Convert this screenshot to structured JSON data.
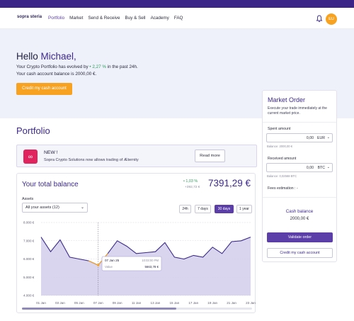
{
  "nav": {
    "logo": "sopra steria",
    "items": [
      "Portfolio",
      "Market",
      "Send & Receive",
      "Buy & Sell",
      "Academy",
      "FAQ"
    ],
    "active": "Portfolio",
    "avatar_initials": "EU",
    "icons": {
      "bell": "bell-icon"
    }
  },
  "hero": {
    "greeting": "Hello",
    "name": "Michael,",
    "evolve_prefix": "Your Crypto Portfolio has evolved by",
    "evolve_pct": "2,27 %",
    "evolve_suffix": "in the past 24h.",
    "balance_text": "Your cash account balance is 2000,00 €.",
    "credit_button": "Credit my cash account"
  },
  "portfolio": {
    "title": "Portfolio",
    "news_title": "NEW !",
    "news_text": "Sopra Crypto Solutions now allows trading of Æternity",
    "read_more": "Read more"
  },
  "balance_card": {
    "title": "Your total balance",
    "change_pct": "1,03 %",
    "change_abs": "+392,72 €",
    "total": "7391,29 €",
    "assets_label": "Assets",
    "assets_value": "All your assets (12)",
    "ranges": [
      "24h",
      "7 days",
      "30 days",
      "1 year"
    ],
    "active_range": "30 days",
    "tooltip_date": "07 Jan 25",
    "tooltip_time": "10:03:00 PM",
    "tooltip_label": "Value",
    "tooltip_value": "5663,78 €"
  },
  "chart_data": {
    "type": "area",
    "x": [
      "01 Jan",
      "02 Jan",
      "03 Jan",
      "04 Jan",
      "05 Jan",
      "06 Jan",
      "07 Jan",
      "08 Jan",
      "09 Jan",
      "10 Jan",
      "11 Jan",
      "12 Jan",
      "13 Jan",
      "14 Jan",
      "15 Jan",
      "16 Jan",
      "17 Jan",
      "18 Jan",
      "19 Jan",
      "20 Jan",
      "21 Jan",
      "22 Jan",
      "23 Jan"
    ],
    "tick_labels": [
      "01 Jan",
      "03 Jan",
      "05 Jan",
      "07 Jan",
      "09 Jan",
      "11 Jan",
      "13 Jan",
      "15 Jan",
      "17 Jan",
      "19 Jan",
      "21 Jan",
      "23 Jan"
    ],
    "values": [
      7200,
      6400,
      7050,
      6100,
      6000,
      5900,
      5664,
      6300,
      7000,
      6700,
      6300,
      6350,
      6400,
      6900,
      6100,
      6000,
      6200,
      6100,
      6650,
      6300,
      6950,
      7000,
      7200
    ],
    "y_ticks": [
      "8.000 €",
      "7.000 €",
      "6.000 €",
      "5.000 €",
      "4.000 €"
    ],
    "ylim": [
      4000,
      8000
    ],
    "grid": true,
    "line_color": "#3b2a86",
    "fill_color": "#d6d0ec"
  },
  "market_order": {
    "title": "Market Order",
    "description": "Execute your trade immediately at the current market price.",
    "spent_label": "Spent amount",
    "spent_value": "0,00",
    "spent_currency": "EUR",
    "spent_balance": "Balance: 2000,00 €",
    "received_label": "Received amount",
    "received_value": "0,00",
    "received_currency": "BTC",
    "received_balance": "Balance: 0,02568 BTC",
    "fees_label": "Fees estimation : -",
    "cash_label": "Cash balance",
    "cash_value": "2000,00 €",
    "validate_button": "Validate order",
    "credit_button": "Credit my cash account"
  }
}
